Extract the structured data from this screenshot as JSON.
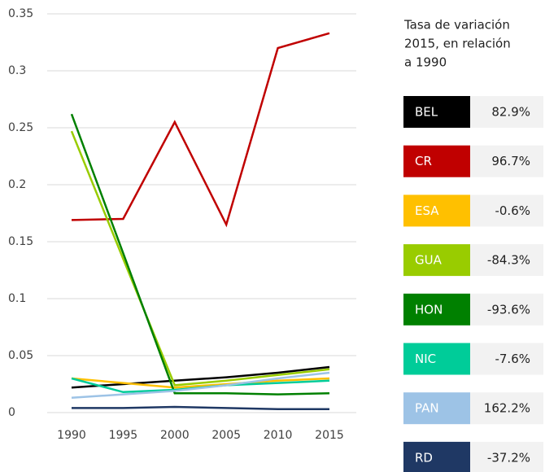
{
  "chart_data": {
    "type": "line",
    "x": [
      1990,
      1995,
      2000,
      2005,
      2010,
      2015
    ],
    "xlim": [
      1990,
      2015
    ],
    "ylim": [
      0,
      0.35
    ],
    "yticks": [
      0,
      0.05,
      0.1,
      0.15,
      0.2,
      0.25,
      0.3,
      0.35
    ],
    "grid": true,
    "legend_title": [
      "Tasa de variación",
      "2015, en relación",
      "a 1990"
    ],
    "series": [
      {
        "name": "BEL",
        "color": "#000000",
        "rate": "82.9%",
        "values": [
          0.022,
          0.025,
          0.028,
          0.031,
          0.035,
          0.04
        ]
      },
      {
        "name": "CR",
        "color": "#c00000",
        "rate": "96.7%",
        "values": [
          0.169,
          0.17,
          0.255,
          0.165,
          0.32,
          0.333
        ]
      },
      {
        "name": "ESA",
        "color": "#ffc000",
        "rate": "-0.6%",
        "values": [
          0.03,
          0.026,
          0.022,
          0.025,
          0.028,
          0.03
        ]
      },
      {
        "name": "GUA",
        "color": "#99cc00",
        "rate": "-84.3%",
        "values": [
          0.247,
          0.135,
          0.024,
          0.028,
          0.033,
          0.038
        ]
      },
      {
        "name": "HON",
        "color": "#008000",
        "rate": "-93.6%",
        "values": [
          0.262,
          0.14,
          0.017,
          0.017,
          0.016,
          0.017
        ]
      },
      {
        "name": "NIC",
        "color": "#00cc99",
        "rate": "-7.6%",
        "values": [
          0.03,
          0.018,
          0.02,
          0.024,
          0.026,
          0.028
        ]
      },
      {
        "name": "PAN",
        "color": "#9dc3e6",
        "rate": "162.2%",
        "values": [
          0.013,
          0.016,
          0.019,
          0.024,
          0.03,
          0.035
        ]
      },
      {
        "name": "RD",
        "color": "#1f3864",
        "rate": "-37.2%",
        "values": [
          0.004,
          0.004,
          0.005,
          0.004,
          0.003,
          0.003
        ]
      }
    ]
  }
}
